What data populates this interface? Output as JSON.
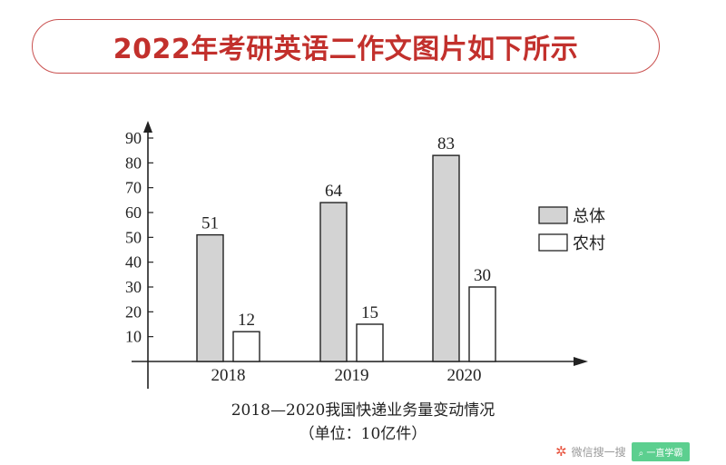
{
  "header": {
    "title": "2022年考研英语二作文图片如下所示"
  },
  "chart_data": {
    "type": "bar",
    "title": "2018—2020我国快递业务量变动情况",
    "subtitle": "（单位：10亿件）",
    "categories": [
      "2018",
      "2019",
      "2020"
    ],
    "series": [
      {
        "name": "总体",
        "values": [
          51,
          64,
          83
        ],
        "color": "#d3d3d3"
      },
      {
        "name": "农村",
        "values": [
          12,
          15,
          30
        ],
        "color": "#ffffff"
      }
    ],
    "yticks": [
      "10",
      "20",
      "30",
      "40",
      "50",
      "60",
      "70",
      "80",
      "90"
    ],
    "ylim": [
      0,
      90
    ],
    "legend_position": "right",
    "grid": false
  },
  "watermark": {
    "text": "微信搜一搜",
    "button": "一直学霸"
  }
}
